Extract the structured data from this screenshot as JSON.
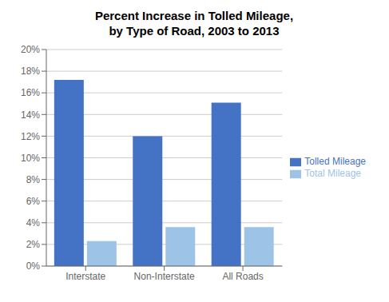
{
  "chart_data": {
    "type": "bar",
    "title": "Percent Increase in Tolled Mileage,\nby Type of Road, 2003 to 2013",
    "categories": [
      "Interstate",
      "Non-Interstate",
      "All Roads"
    ],
    "series": [
      {
        "name": "Tolled Mileage",
        "color": "#4472C4",
        "values": [
          0.172,
          0.12,
          0.151
        ]
      },
      {
        "name": "Total Mileage",
        "color": "#9DC3E6",
        "values": [
          0.023,
          0.036,
          0.036
        ]
      }
    ],
    "ylim": [
      0,
      0.2
    ],
    "yticks": [
      {
        "value": 0.0,
        "label": "0%"
      },
      {
        "value": 0.02,
        "label": "2%"
      },
      {
        "value": 0.04,
        "label": "4%"
      },
      {
        "value": 0.06,
        "label": "6%"
      },
      {
        "value": 0.08,
        "label": "8%"
      },
      {
        "value": 0.1,
        "label": "10%"
      },
      {
        "value": 0.12,
        "label": "12%"
      },
      {
        "value": 0.14,
        "label": "14%"
      },
      {
        "value": 0.16,
        "label": "16%"
      },
      {
        "value": 0.18,
        "label": "18%"
      },
      {
        "value": 0.2,
        "label": "20%"
      }
    ],
    "grid": true,
    "legend": "right"
  }
}
